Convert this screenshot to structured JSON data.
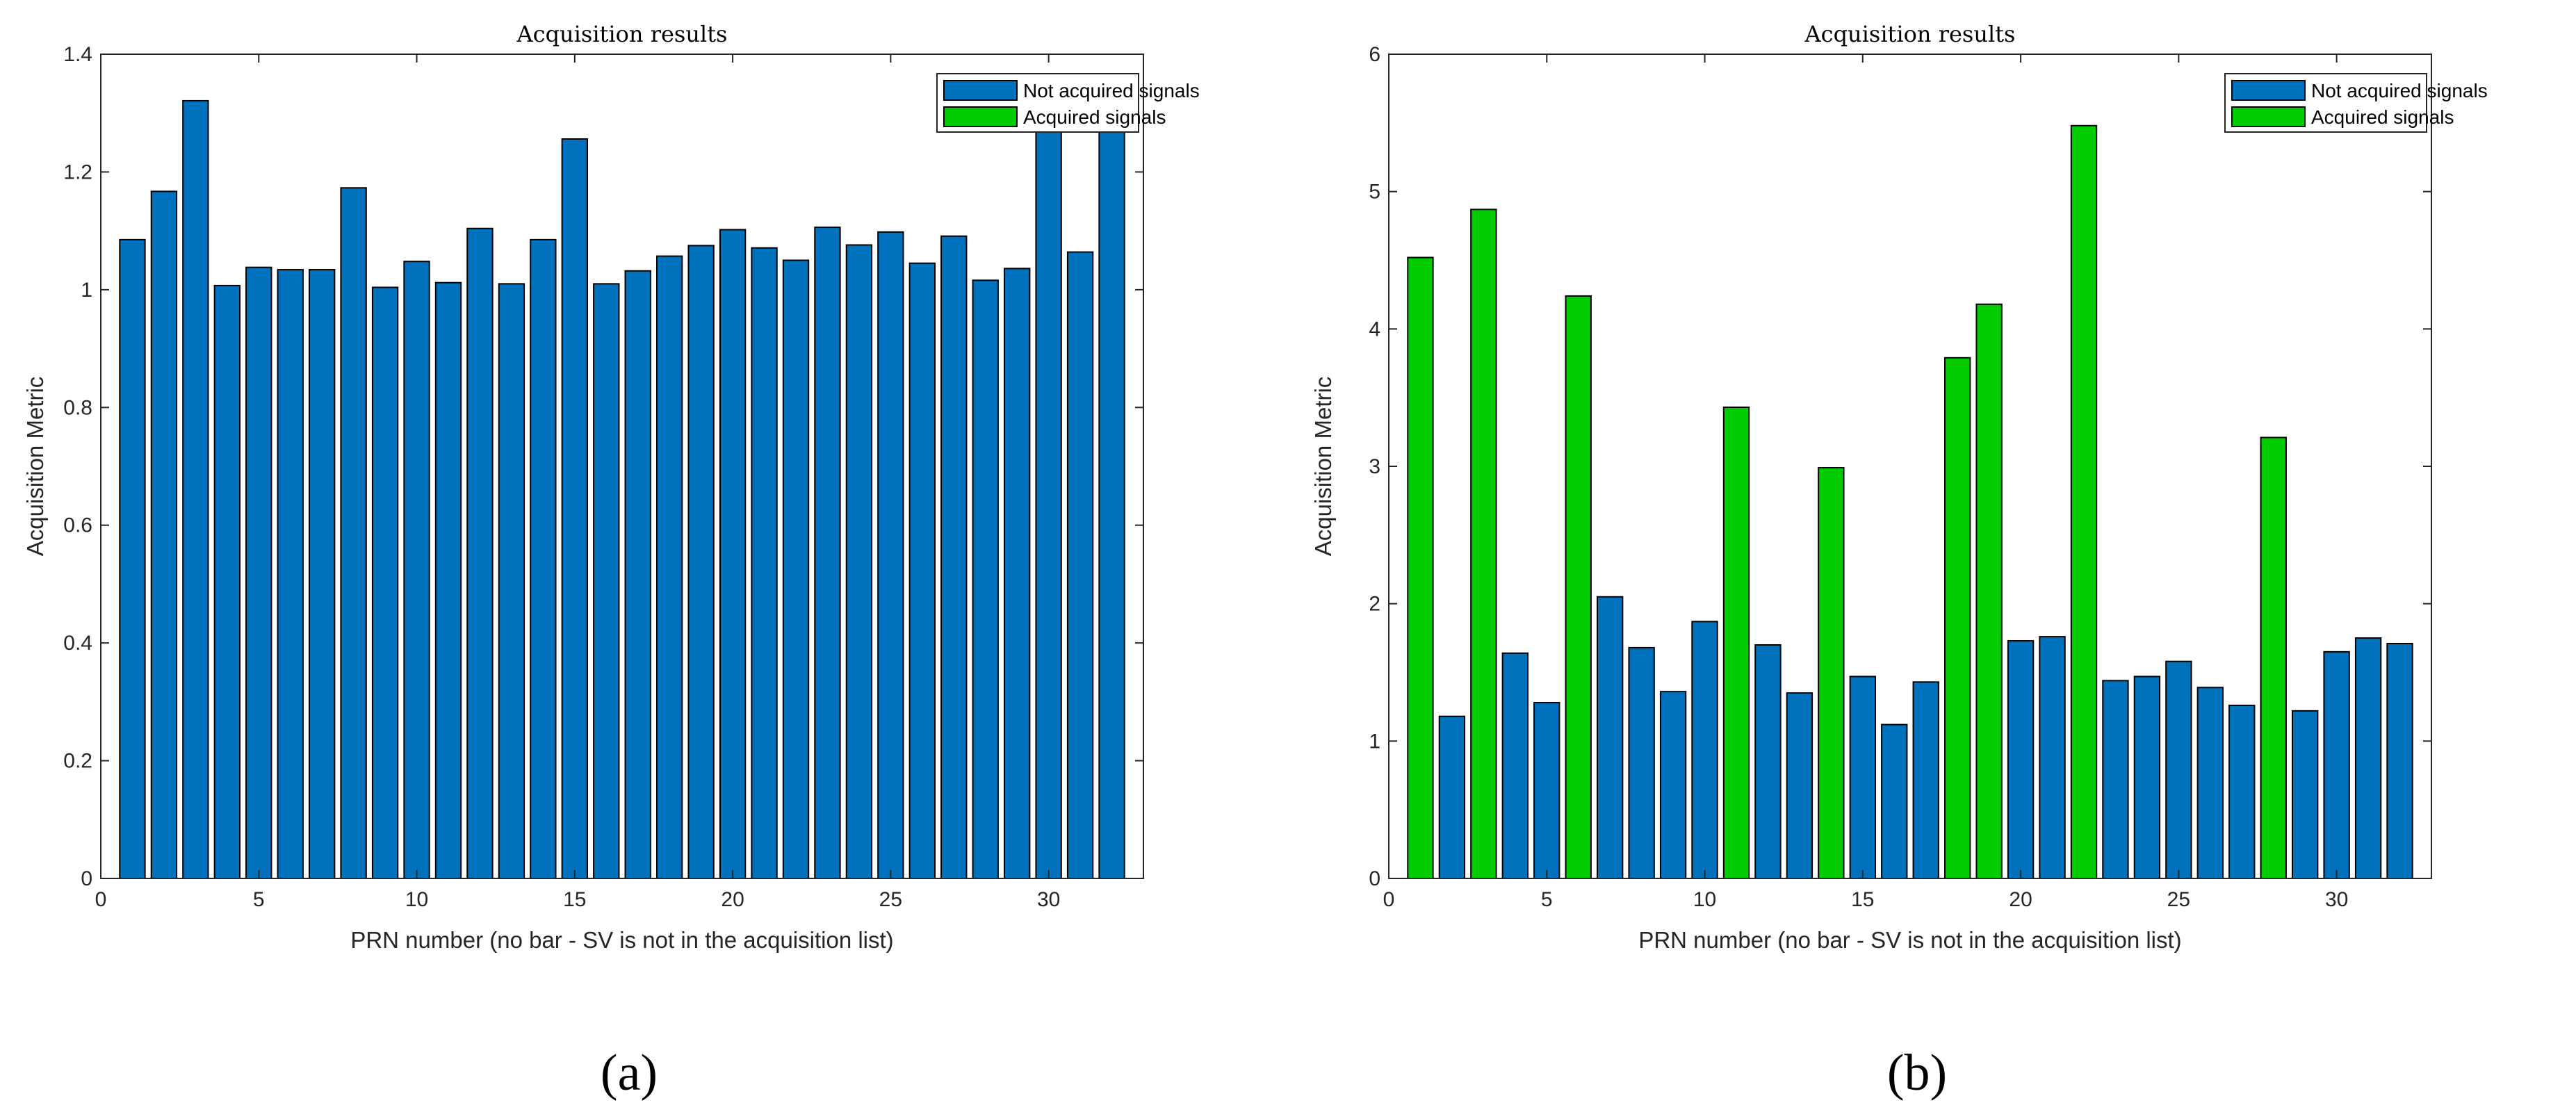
{
  "chart_data": [
    {
      "type": "bar",
      "panel_label": "(a)",
      "title": "Acquisition results",
      "xlabel": "PRN number (no bar - SV is not in the acquisition list)",
      "ylabel": "Acquisition Metric",
      "xlim": [
        0,
        33
      ],
      "ylim": [
        0,
        1.4
      ],
      "x_ticks": [
        0,
        5,
        10,
        15,
        20,
        25,
        30
      ],
      "y_ticks": [
        0,
        0.2,
        0.4,
        0.6,
        0.8,
        1,
        1.2,
        1.4
      ],
      "y_tick_labels": [
        "0",
        "0.2",
        "0.4",
        "0.6",
        "0.8",
        "1",
        "1.2",
        "1.4"
      ],
      "legend_position": "top-right",
      "legend": [
        {
          "label": "Not acquired signals",
          "color": "#0072BD"
        },
        {
          "label": "Acquired signals",
          "color": "#00CC00"
        }
      ],
      "x": [
        1,
        2,
        3,
        4,
        5,
        6,
        7,
        8,
        9,
        10,
        11,
        12,
        13,
        14,
        15,
        16,
        17,
        18,
        19,
        20,
        21,
        22,
        23,
        24,
        25,
        26,
        27,
        28,
        29,
        30,
        31,
        32
      ],
      "values": [
        1.085,
        1.167,
        1.321,
        1.007,
        1.038,
        1.034,
        1.034,
        1.173,
        1.004,
        1.048,
        1.012,
        1.104,
        1.01,
        1.085,
        1.256,
        1.01,
        1.032,
        1.057,
        1.075,
        1.102,
        1.071,
        1.05,
        1.106,
        1.076,
        1.098,
        1.045,
        1.091,
        1.016,
        1.036,
        1.31,
        1.064,
        1.32
      ],
      "acquired": [
        false,
        false,
        false,
        false,
        false,
        false,
        false,
        false,
        false,
        false,
        false,
        false,
        false,
        false,
        false,
        false,
        false,
        false,
        false,
        false,
        false,
        false,
        false,
        false,
        false,
        false,
        false,
        false,
        false,
        false,
        false,
        false
      ]
    },
    {
      "type": "bar",
      "panel_label": "(b)",
      "title": "Acquisition results",
      "xlabel": "PRN number (no bar - SV is not in the acquisition list)",
      "ylabel": "Acquisition Metric",
      "xlim": [
        0,
        33
      ],
      "ylim": [
        0,
        6
      ],
      "x_ticks": [
        0,
        5,
        10,
        15,
        20,
        25,
        30
      ],
      "y_ticks": [
        0,
        1,
        2,
        3,
        4,
        5,
        6
      ],
      "y_tick_labels": [
        "0",
        "1",
        "2",
        "3",
        "4",
        "5",
        "6"
      ],
      "legend_position": "top-right",
      "legend": [
        {
          "label": "Not acquired signals",
          "color": "#0072BD"
        },
        {
          "label": "Acquired signals",
          "color": "#00CC00"
        }
      ],
      "x": [
        1,
        2,
        3,
        4,
        5,
        6,
        7,
        8,
        9,
        10,
        11,
        12,
        13,
        14,
        15,
        16,
        17,
        18,
        19,
        20,
        21,
        22,
        23,
        24,
        25,
        26,
        27,
        28,
        29,
        30,
        31,
        32
      ],
      "values": [
        4.52,
        1.18,
        4.87,
        1.64,
        1.28,
        4.24,
        2.05,
        1.68,
        1.36,
        1.87,
        3.43,
        1.7,
        1.35,
        2.99,
        1.47,
        1.12,
        1.43,
        3.79,
        4.18,
        1.73,
        1.76,
        5.48,
        1.44,
        1.47,
        1.58,
        1.39,
        1.26,
        3.21,
        1.22,
        1.65,
        1.75,
        1.71
      ],
      "acquired": [
        true,
        false,
        true,
        false,
        false,
        true,
        false,
        false,
        false,
        false,
        true,
        false,
        false,
        true,
        false,
        false,
        false,
        true,
        true,
        false,
        false,
        true,
        false,
        false,
        false,
        false,
        false,
        true,
        false,
        false,
        false,
        false
      ]
    }
  ]
}
